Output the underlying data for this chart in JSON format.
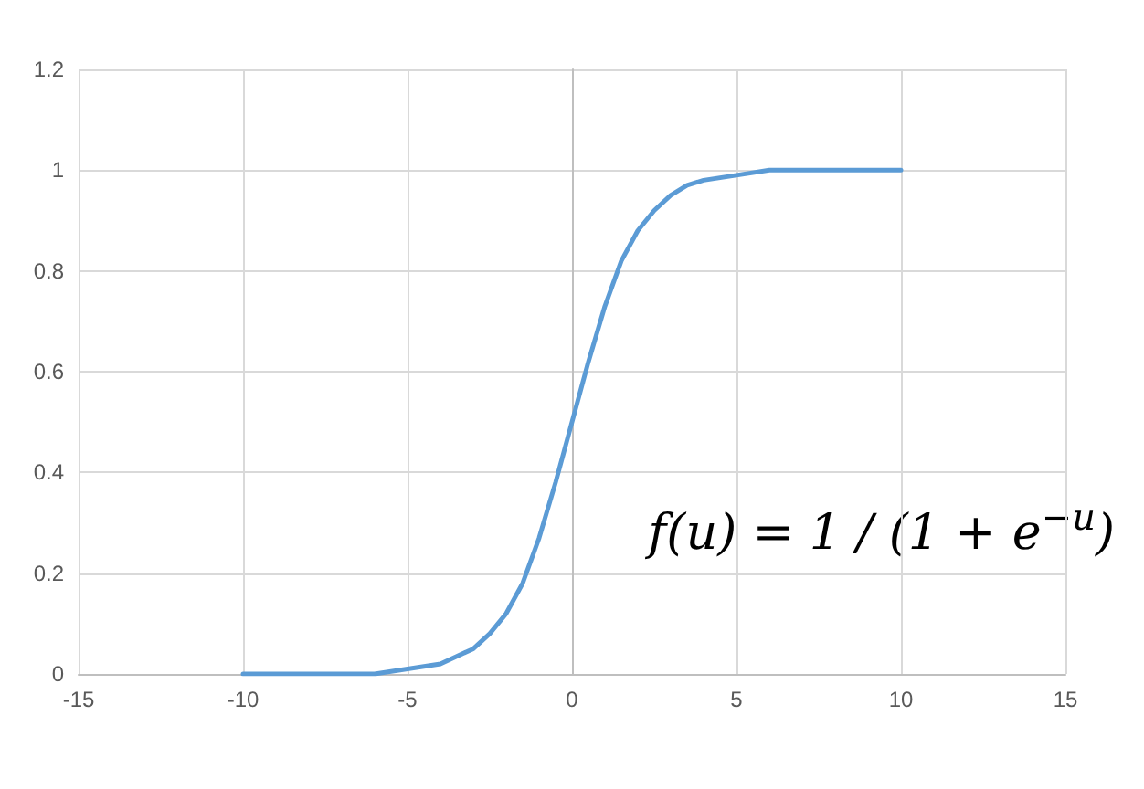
{
  "chart_data": {
    "type": "line",
    "x": [
      -10,
      -9,
      -8,
      -7,
      -6,
      -5,
      -4,
      -3,
      -2.5,
      -2,
      -1.5,
      -1,
      -0.5,
      0,
      0.5,
      1,
      1.5,
      2,
      2.5,
      3,
      3.5,
      4,
      5,
      6,
      7,
      8,
      9,
      10
    ],
    "series": [
      {
        "color": "#5b9bd5",
        "values": [
          0,
          0,
          0,
          0,
          0,
          0.01,
          0.02,
          0.05,
          0.08,
          0.12,
          0.18,
          0.27,
          0.38,
          0.5,
          0.62,
          0.73,
          0.82,
          0.88,
          0.92,
          0.95,
          0.97,
          0.98,
          0.99,
          1,
          1,
          1,
          1,
          1
        ]
      }
    ],
    "xlim": [
      -15,
      15
    ],
    "xticks": [
      -15,
      -10,
      -5,
      0,
      5,
      10,
      15
    ],
    "ylim": [
      0,
      1.2
    ],
    "yticks": [
      0,
      0.2,
      0.4,
      0.6,
      0.8,
      1,
      1.2
    ],
    "grid": true,
    "marker": "none",
    "line_style": "solid",
    "annotations": [
      "f(u) = 1 / (1 + e$^{−u}$)"
    ]
  }
}
